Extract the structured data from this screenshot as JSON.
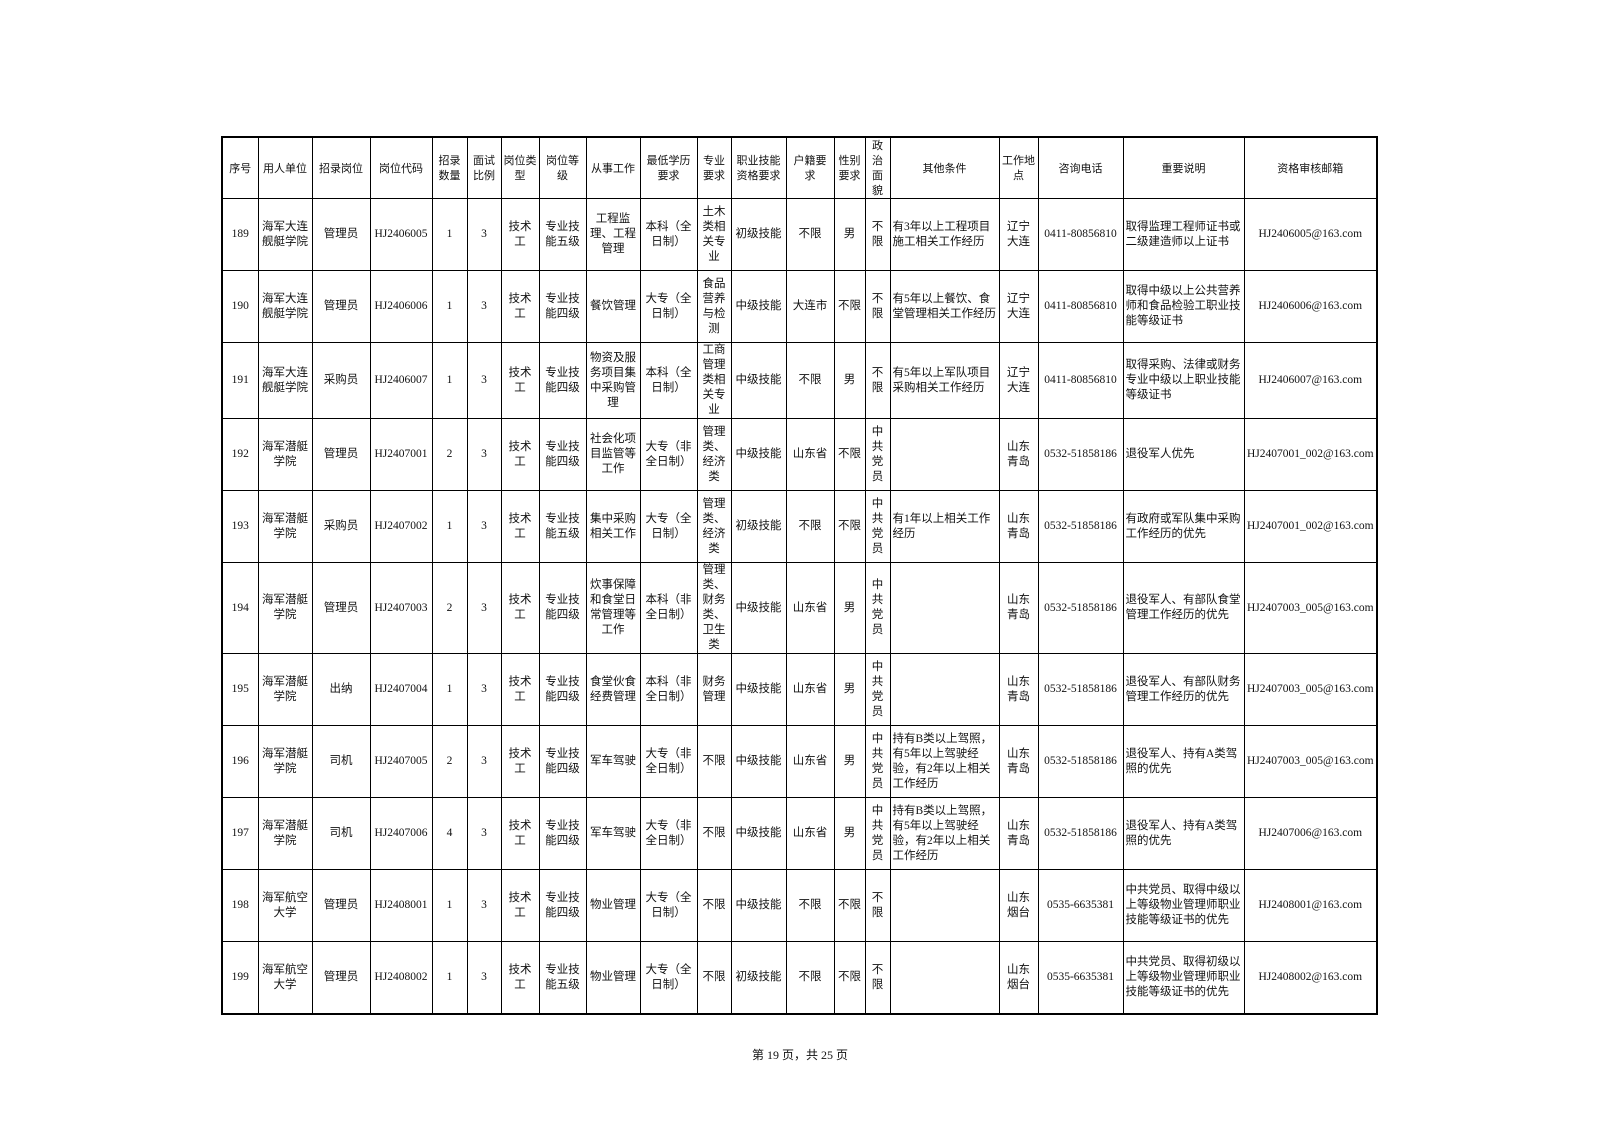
{
  "table": {
    "headers": [
      "序号",
      "用人单位",
      "招录岗位",
      "岗位代码",
      "招录数量",
      "面试比例",
      "岗位类型",
      "岗位等级",
      "从事工作",
      "最低学历要求",
      "专业要求",
      "职业技能资格要求",
      "户籍要求",
      "性别要求",
      "政治面貌",
      "其他条件",
      "工作地点",
      "咨询电话",
      "重要说明",
      "资格审核邮箱"
    ],
    "rows": [
      [
        189,
        "海军大连舰艇学院",
        "管理员",
        "HJ2406005",
        1,
        3,
        "技术工",
        "专业技能五级",
        "工程监理、工程管理",
        "本科（全日制）",
        "土木类相关专业",
        "初级技能",
        "不限",
        "男",
        "不限",
        "有3年以上工程项目施工相关工作经历",
        "辽宁大连",
        "0411-80856810",
        "取得监理工程师证书或二级建造师以上证书",
        "HJ2406005@163.com"
      ],
      [
        190,
        "海军大连舰艇学院",
        "管理员",
        "HJ2406006",
        1,
        3,
        "技术工",
        "专业技能四级",
        "餐饮管理",
        "大专（全日制）",
        "食品营养与检测",
        "中级技能",
        "大连市",
        "不限",
        "不限",
        "有5年以上餐饮、食堂管理相关工作经历",
        "辽宁大连",
        "0411-80856810",
        "取得中级以上公共营养师和食品检验工职业技能等级证书",
        "HJ2406006@163.com"
      ],
      [
        191,
        "海军大连舰艇学院",
        "采购员",
        "HJ2406007",
        1,
        3,
        "技术工",
        "专业技能四级",
        "物资及服务项目集中采购管理",
        "本科（全日制）",
        "工商管理类相关专业",
        "中级技能",
        "不限",
        "男",
        "不限",
        "有5年以上军队项目采购相关工作经历",
        "辽宁大连",
        "0411-80856810",
        "取得采购、法律或财务专业中级以上职业技能等级证书",
        "HJ2406007@163.com"
      ],
      [
        192,
        "海军潜艇学院",
        "管理员",
        "HJ2407001",
        2,
        3,
        "技术工",
        "专业技能四级",
        "社会化项目监管等工作",
        "大专（非全日制）",
        "管理类、经济类",
        "中级技能",
        "山东省",
        "不限",
        "中共党员",
        null,
        "山东青岛",
        "0532-51858186",
        "退役军人优先",
        "HJ2407001_002@163.com"
      ],
      [
        193,
        "海军潜艇学院",
        "采购员",
        "HJ2407002",
        1,
        3,
        "技术工",
        "专业技能五级",
        "集中采购相关工作",
        "大专（全日制）",
        "管理类、经济类",
        "初级技能",
        "不限",
        "不限",
        "中共党员",
        "有1年以上相关工作经历",
        "山东青岛",
        "0532-51858186",
        "有政府或军队集中采购工作经历的优先",
        "HJ2407001_002@163.com"
      ],
      [
        194,
        "海军潜艇学院",
        "管理员",
        "HJ2407003",
        2,
        3,
        "技术工",
        "专业技能四级",
        "炊事保障和食堂日常管理等工作",
        "本科（非全日制）",
        "管理类、财务类、卫生类",
        "中级技能",
        "山东省",
        "男",
        "中共党员",
        null,
        "山东青岛",
        "0532-51858186",
        "退役军人、有部队食堂管理工作经历的优先",
        "HJ2407003_005@163.com"
      ],
      [
        195,
        "海军潜艇学院",
        "出纳",
        "HJ2407004",
        1,
        3,
        "技术工",
        "专业技能四级",
        "食堂伙食经费管理",
        "本科（非全日制）",
        "财务管理",
        "中级技能",
        "山东省",
        "男",
        "中共党员",
        null,
        "山东青岛",
        "0532-51858186",
        "退役军人、有部队财务管理工作经历的优先",
        "HJ2407003_005@163.com"
      ],
      [
        196,
        "海军潜艇学院",
        "司机",
        "HJ2407005",
        2,
        3,
        "技术工",
        "专业技能四级",
        "军车驾驶",
        "大专（非全日制）",
        "不限",
        "中级技能",
        "山东省",
        "男",
        "中共党员",
        "持有B类以上驾照，有5年以上驾驶经验，有2年以上相关工作经历",
        "山东青岛",
        "0532-51858186",
        "退役军人、持有A类驾照的优先",
        "HJ2407003_005@163.com"
      ],
      [
        197,
        "海军潜艇学院",
        "司机",
        "HJ2407006",
        4,
        3,
        "技术工",
        "专业技能四级",
        "军车驾驶",
        "大专（非全日制）",
        "不限",
        "中级技能",
        "山东省",
        "男",
        "中共党员",
        "持有B类以上驾照，有5年以上驾驶经验，有2年以上相关工作经历",
        "山东青岛",
        "0532-51858186",
        "退役军人、持有A类驾照的优先",
        "HJ2407006@163.com"
      ],
      [
        198,
        "海军航空大学",
        "管理员",
        "HJ2408001",
        1,
        3,
        "技术工",
        "专业技能四级",
        "物业管理",
        "大专（全日制）",
        "不限",
        "中级技能",
        "不限",
        "不限",
        "不限",
        null,
        "山东烟台",
        "0535-6635381",
        "中共党员、取得中级以上等级物业管理师职业技能等级证书的优先",
        "HJ2408001@163.com"
      ],
      [
        199,
        "海军航空大学",
        "管理员",
        "HJ2408002",
        1,
        3,
        "技术工",
        "专业技能五级",
        "物业管理",
        "大专（全日制）",
        "不限",
        "初级技能",
        "不限",
        "不限",
        "不限",
        null,
        "山东烟台",
        "0535-6635381",
        "中共党员、取得初级以上等级物业管理师职业技能等级证书的优先",
        "HJ2408002@163.com"
      ]
    ]
  },
  "footer": {
    "page": "第 19 页，共 25 页"
  }
}
